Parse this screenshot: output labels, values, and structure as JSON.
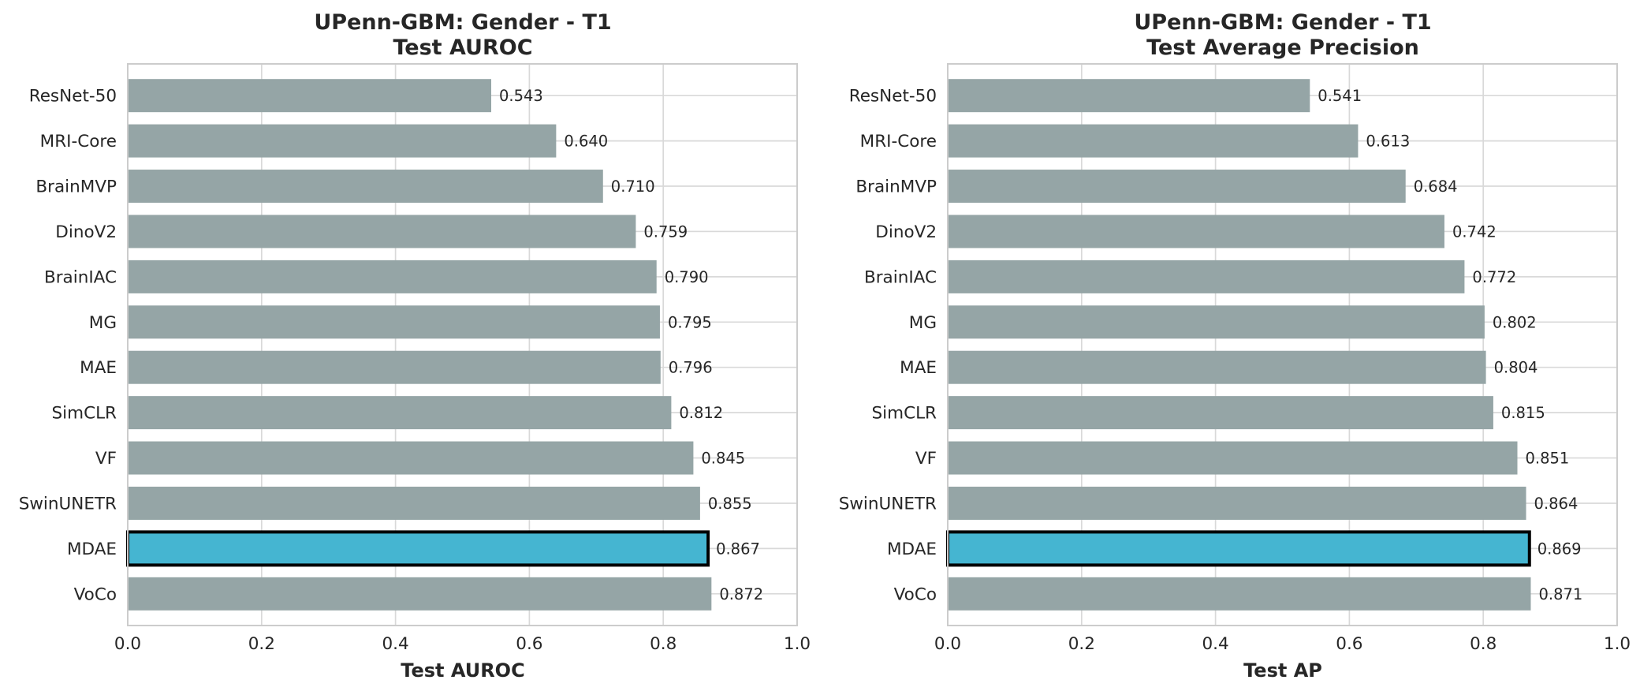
{
  "colors": {
    "bar": "#95a5a6",
    "highlight": "#45b5d1",
    "highlight_edge": "#000000",
    "grid": "#d9d9d9",
    "frame": "#cccccc",
    "text": "#262626"
  },
  "chart_data": [
    {
      "type": "bar",
      "orientation": "horizontal",
      "title_line1": "UPenn-GBM: Gender - T1",
      "title_line2": "Test AUROC",
      "xlabel": "Test AUROC",
      "xlim": [
        0,
        1.0
      ],
      "xticks": [
        "0.0",
        "0.2",
        "0.4",
        "0.6",
        "0.8",
        "1.0"
      ],
      "grid": true,
      "highlight": "MDAE",
      "categories": [
        "ResNet-50",
        "MRI-Core",
        "BrainMVP",
        "DinoV2",
        "BrainIAC",
        "MG",
        "MAE",
        "SimCLR",
        "VF",
        "SwinUNETR",
        "MDAE",
        "VoCo"
      ],
      "values": [
        0.543,
        0.64,
        0.71,
        0.759,
        0.79,
        0.795,
        0.796,
        0.812,
        0.845,
        0.855,
        0.867,
        0.872
      ],
      "value_labels": [
        "0.543",
        "0.640",
        "0.710",
        "0.759",
        "0.790",
        "0.795",
        "0.796",
        "0.812",
        "0.845",
        "0.855",
        "0.867",
        "0.872"
      ]
    },
    {
      "type": "bar",
      "orientation": "horizontal",
      "title_line1": "UPenn-GBM: Gender - T1",
      "title_line2": "Test Average Precision",
      "xlabel": "Test AP",
      "xlim": [
        0,
        1.0
      ],
      "xticks": [
        "0.0",
        "0.2",
        "0.4",
        "0.6",
        "0.8",
        "1.0"
      ],
      "grid": true,
      "highlight": "MDAE",
      "categories": [
        "ResNet-50",
        "MRI-Core",
        "BrainMVP",
        "DinoV2",
        "BrainIAC",
        "MG",
        "MAE",
        "SimCLR",
        "VF",
        "SwinUNETR",
        "MDAE",
        "VoCo"
      ],
      "values": [
        0.541,
        0.613,
        0.684,
        0.742,
        0.772,
        0.802,
        0.804,
        0.815,
        0.851,
        0.864,
        0.869,
        0.871
      ],
      "value_labels": [
        "0.541",
        "0.613",
        "0.684",
        "0.742",
        "0.772",
        "0.802",
        "0.804",
        "0.815",
        "0.851",
        "0.864",
        "0.869",
        "0.871"
      ]
    }
  ]
}
